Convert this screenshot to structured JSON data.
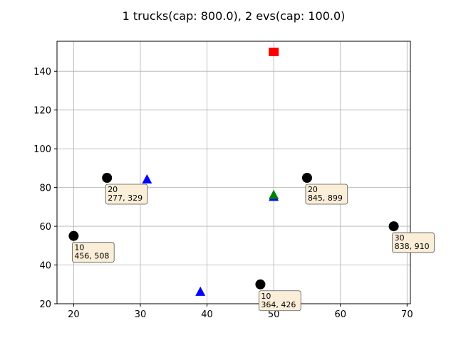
{
  "chart_data": {
    "type": "scatter",
    "title": "1 trucks(cap: 800.0), 2 evs(cap: 100.0)",
    "xlabel": "",
    "ylabel": "",
    "xlim": [
      17.5,
      70.5
    ],
    "ylim": [
      20,
      155.5
    ],
    "xticks": [
      20,
      30,
      40,
      50,
      60,
      70
    ],
    "yticks": [
      20,
      40,
      60,
      80,
      100,
      120,
      140
    ],
    "grid": true,
    "legend": "none",
    "series": [
      {
        "marker": "circle",
        "color": "#000000",
        "points": [
          {
            "x": 20,
            "y": 55,
            "label": [
              "10",
              "456, 508"
            ]
          },
          {
            "x": 25,
            "y": 85,
            "label": [
              "20",
              "277, 329"
            ]
          },
          {
            "x": 48,
            "y": 30,
            "label": [
              "10",
              "364, 426"
            ]
          },
          {
            "x": 55,
            "y": 85,
            "label": [
              "20",
              "845, 899"
            ]
          },
          {
            "x": 68,
            "y": 60,
            "label": [
              "30",
              "838, 910"
            ]
          }
        ]
      },
      {
        "marker": "triangle",
        "color": "#0000ff",
        "points": [
          {
            "x": 31,
            "y": 84
          },
          {
            "x": 39,
            "y": 26
          },
          {
            "x": 50,
            "y": 75
          }
        ]
      },
      {
        "marker": "triangle",
        "color": "#008000",
        "points": [
          {
            "x": 50,
            "y": 76
          }
        ]
      },
      {
        "marker": "square",
        "color": "#ff0000",
        "points": [
          {
            "x": 50,
            "y": 150
          }
        ]
      }
    ]
  }
}
